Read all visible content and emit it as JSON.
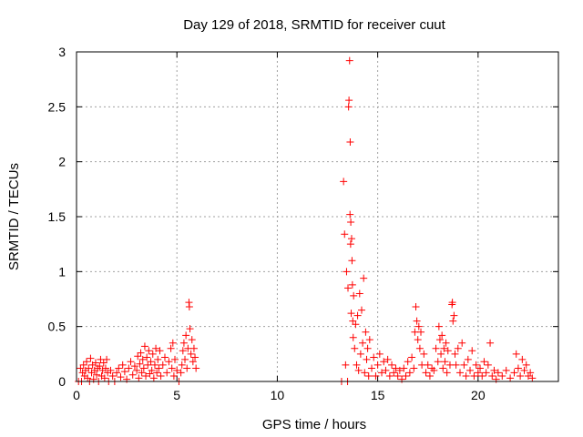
{
  "chart_data": {
    "type": "scatter",
    "title": "Day 129 of 2018, SRMTID for receiver cuut",
    "xlabel": "GPS time / hours",
    "ylabel": "SRMTID / TECUs",
    "xlim": [
      0,
      24
    ],
    "ylim": [
      0,
      3
    ],
    "xticks": [
      0,
      5,
      10,
      15,
      20
    ],
    "yticks": [
      0,
      0.5,
      1,
      1.5,
      2,
      2.5,
      3
    ],
    "xtick_labels": [
      "0",
      "5",
      "10",
      "15",
      "20"
    ],
    "ytick_labels": [
      "0",
      "0.5",
      "1",
      "1.5",
      "2",
      "2.5",
      "3"
    ],
    "grid": true,
    "marker": "+",
    "color": "#ff0000",
    "series": [
      {
        "name": "SRMTID",
        "points": [
          [
            0.1,
            0.0
          ],
          [
            0.2,
            0.12
          ],
          [
            0.25,
            0.0
          ],
          [
            0.3,
            0.08
          ],
          [
            0.35,
            0.15
          ],
          [
            0.4,
            0.05
          ],
          [
            0.45,
            0.1
          ],
          [
            0.5,
            0.18
          ],
          [
            0.55,
            0.03
          ],
          [
            0.6,
            0.12
          ],
          [
            0.65,
            0.0
          ],
          [
            0.7,
            0.21
          ],
          [
            0.75,
            0.08
          ],
          [
            0.8,
            0.15
          ],
          [
            0.85,
            0.02
          ],
          [
            0.9,
            0.1
          ],
          [
            0.95,
            0.17
          ],
          [
            1.0,
            0.06
          ],
          [
            1.05,
            0.12
          ],
          [
            1.1,
            0.0
          ],
          [
            1.15,
            0.14
          ],
          [
            1.2,
            0.2
          ],
          [
            1.25,
            0.05
          ],
          [
            1.3,
            0.1
          ],
          [
            1.35,
            0.17
          ],
          [
            1.4,
            0.03
          ],
          [
            1.45,
            0.12
          ],
          [
            1.5,
            0.2
          ],
          [
            1.55,
            0.08
          ],
          [
            1.6,
            0.0
          ],
          [
            1.7,
            0.1
          ],
          [
            1.8,
            0.05
          ],
          [
            1.9,
            0.0
          ],
          [
            2.0,
            0.08
          ],
          [
            2.1,
            0.12
          ],
          [
            2.2,
            0.04
          ],
          [
            2.3,
            0.15
          ],
          [
            2.4,
            0.09
          ],
          [
            2.5,
            0.02
          ],
          [
            2.6,
            0.12
          ],
          [
            2.7,
            0.18
          ],
          [
            2.8,
            0.06
          ],
          [
            2.9,
            0.14
          ],
          [
            3.0,
            0.1
          ],
          [
            3.05,
            0.23
          ],
          [
            3.1,
            0.03
          ],
          [
            3.15,
            0.16
          ],
          [
            3.2,
            0.26
          ],
          [
            3.25,
            0.08
          ],
          [
            3.3,
            0.2
          ],
          [
            3.35,
            0.12
          ],
          [
            3.4,
            0.32
          ],
          [
            3.45,
            0.05
          ],
          [
            3.5,
            0.22
          ],
          [
            3.55,
            0.15
          ],
          [
            3.6,
            0.28
          ],
          [
            3.65,
            0.07
          ],
          [
            3.7,
            0.18
          ],
          [
            3.75,
            0.1
          ],
          [
            3.8,
            0.25
          ],
          [
            3.85,
            0.03
          ],
          [
            3.9,
            0.15
          ],
          [
            3.95,
            0.3
          ],
          [
            4.0,
            0.08
          ],
          [
            4.05,
            0.2
          ],
          [
            4.1,
            0.12
          ],
          [
            4.15,
            0.28
          ],
          [
            4.2,
            0.05
          ],
          [
            4.3,
            0.15
          ],
          [
            4.4,
            0.22
          ],
          [
            4.5,
            0.08
          ],
          [
            4.6,
            0.18
          ],
          [
            4.7,
            0.3
          ],
          [
            4.75,
            0.12
          ],
          [
            4.8,
            0.35
          ],
          [
            4.85,
            0.05
          ],
          [
            4.9,
            0.2
          ],
          [
            5.0,
            0.1
          ],
          [
            5.1,
            0.0
          ],
          [
            5.2,
            0.08
          ],
          [
            5.25,
            0.15
          ],
          [
            5.3,
            0.28
          ],
          [
            5.35,
            0.35
          ],
          [
            5.4,
            0.2
          ],
          [
            5.45,
            0.42
          ],
          [
            5.5,
            0.12
          ],
          [
            5.55,
            0.3
          ],
          [
            5.6,
            0.72
          ],
          [
            5.62,
            0.68
          ],
          [
            5.65,
            0.48
          ],
          [
            5.7,
            0.25
          ],
          [
            5.75,
            0.38
          ],
          [
            5.8,
            0.18
          ],
          [
            5.85,
            0.3
          ],
          [
            5.9,
            0.22
          ],
          [
            5.95,
            0.12
          ],
          [
            13.2,
            0.0
          ],
          [
            13.3,
            1.82
          ],
          [
            13.35,
            1.34
          ],
          [
            13.4,
            0.15
          ],
          [
            13.45,
            1.0
          ],
          [
            13.5,
            0.0
          ],
          [
            13.52,
            0.85
          ],
          [
            13.55,
            2.5
          ],
          [
            13.57,
            2.56
          ],
          [
            13.6,
            2.92
          ],
          [
            13.62,
            1.52
          ],
          [
            13.63,
            2.18
          ],
          [
            13.65,
            1.25
          ],
          [
            13.66,
            1.45
          ],
          [
            13.68,
            0.62
          ],
          [
            13.7,
            1.3
          ],
          [
            13.72,
            1.1
          ],
          [
            13.74,
            0.88
          ],
          [
            13.76,
            0.55
          ],
          [
            13.78,
            0.4
          ],
          [
            13.8,
            0.78
          ],
          [
            13.85,
            0.3
          ],
          [
            13.9,
            0.52
          ],
          [
            13.95,
            0.15
          ],
          [
            14.0,
            0.6
          ],
          [
            14.05,
            0.1
          ],
          [
            14.1,
            0.8
          ],
          [
            14.15,
            0.25
          ],
          [
            14.2,
            0.65
          ],
          [
            14.25,
            0.35
          ],
          [
            14.3,
            0.94
          ],
          [
            14.35,
            0.08
          ],
          [
            14.4,
            0.45
          ],
          [
            14.45,
            0.2
          ],
          [
            14.5,
            0.3
          ],
          [
            14.55,
            0.05
          ],
          [
            14.6,
            0.38
          ],
          [
            14.7,
            0.12
          ],
          [
            14.8,
            0.22
          ],
          [
            14.9,
            0.05
          ],
          [
            15.0,
            0.15
          ],
          [
            15.1,
            0.25
          ],
          [
            15.2,
            0.08
          ],
          [
            15.3,
            0.18
          ],
          [
            15.4,
            0.1
          ],
          [
            15.5,
            0.2
          ],
          [
            15.6,
            0.05
          ],
          [
            15.7,
            0.15
          ],
          [
            15.8,
            0.08
          ],
          [
            15.9,
            0.12
          ],
          [
            16.0,
            0.05
          ],
          [
            16.1,
            0.1
          ],
          [
            16.2,
            0.02
          ],
          [
            16.3,
            0.12
          ],
          [
            16.4,
            0.05
          ],
          [
            16.5,
            0.18
          ],
          [
            16.6,
            0.08
          ],
          [
            16.7,
            0.22
          ],
          [
            16.8,
            0.12
          ],
          [
            16.85,
            0.45
          ],
          [
            16.9,
            0.68
          ],
          [
            16.95,
            0.55
          ],
          [
            17.0,
            0.38
          ],
          [
            17.05,
            0.5
          ],
          [
            17.1,
            0.3
          ],
          [
            17.15,
            0.45
          ],
          [
            17.2,
            0.15
          ],
          [
            17.3,
            0.25
          ],
          [
            17.4,
            0.08
          ],
          [
            17.5,
            0.15
          ],
          [
            17.6,
            0.05
          ],
          [
            17.7,
            0.12
          ],
          [
            17.8,
            0.1
          ],
          [
            17.9,
            0.3
          ],
          [
            18.0,
            0.18
          ],
          [
            18.05,
            0.5
          ],
          [
            18.1,
            0.38
          ],
          [
            18.15,
            0.25
          ],
          [
            18.2,
            0.42
          ],
          [
            18.25,
            0.12
          ],
          [
            18.3,
            0.3
          ],
          [
            18.35,
            0.18
          ],
          [
            18.4,
            0.35
          ],
          [
            18.45,
            0.08
          ],
          [
            18.5,
            0.28
          ],
          [
            18.6,
            0.15
          ],
          [
            18.7,
            0.7
          ],
          [
            18.72,
            0.72
          ],
          [
            18.75,
            0.55
          ],
          [
            18.8,
            0.6
          ],
          [
            18.85,
            0.25
          ],
          [
            18.9,
            0.15
          ],
          [
            19.0,
            0.3
          ],
          [
            19.1,
            0.08
          ],
          [
            19.2,
            0.35
          ],
          [
            19.3,
            0.15
          ],
          [
            19.4,
            0.05
          ],
          [
            19.5,
            0.2
          ],
          [
            19.6,
            0.1
          ],
          [
            19.7,
            0.28
          ],
          [
            19.8,
            0.05
          ],
          [
            19.9,
            0.15
          ],
          [
            20.0,
            0.08
          ],
          [
            20.1,
            0.12
          ],
          [
            20.2,
            0.05
          ],
          [
            20.3,
            0.18
          ],
          [
            20.4,
            0.08
          ],
          [
            20.5,
            0.15
          ],
          [
            20.6,
            0.35
          ],
          [
            20.7,
            0.05
          ],
          [
            20.8,
            0.1
          ],
          [
            20.9,
            0.02
          ],
          [
            21.0,
            0.08
          ],
          [
            21.2,
            0.05
          ],
          [
            21.4,
            0.1
          ],
          [
            21.6,
            0.03
          ],
          [
            21.8,
            0.08
          ],
          [
            21.9,
            0.25
          ],
          [
            22.0,
            0.12
          ],
          [
            22.1,
            0.05
          ],
          [
            22.2,
            0.2
          ],
          [
            22.3,
            0.1
          ],
          [
            22.4,
            0.15
          ],
          [
            22.5,
            0.05
          ],
          [
            22.6,
            0.08
          ],
          [
            22.7,
            0.03
          ]
        ]
      }
    ]
  }
}
